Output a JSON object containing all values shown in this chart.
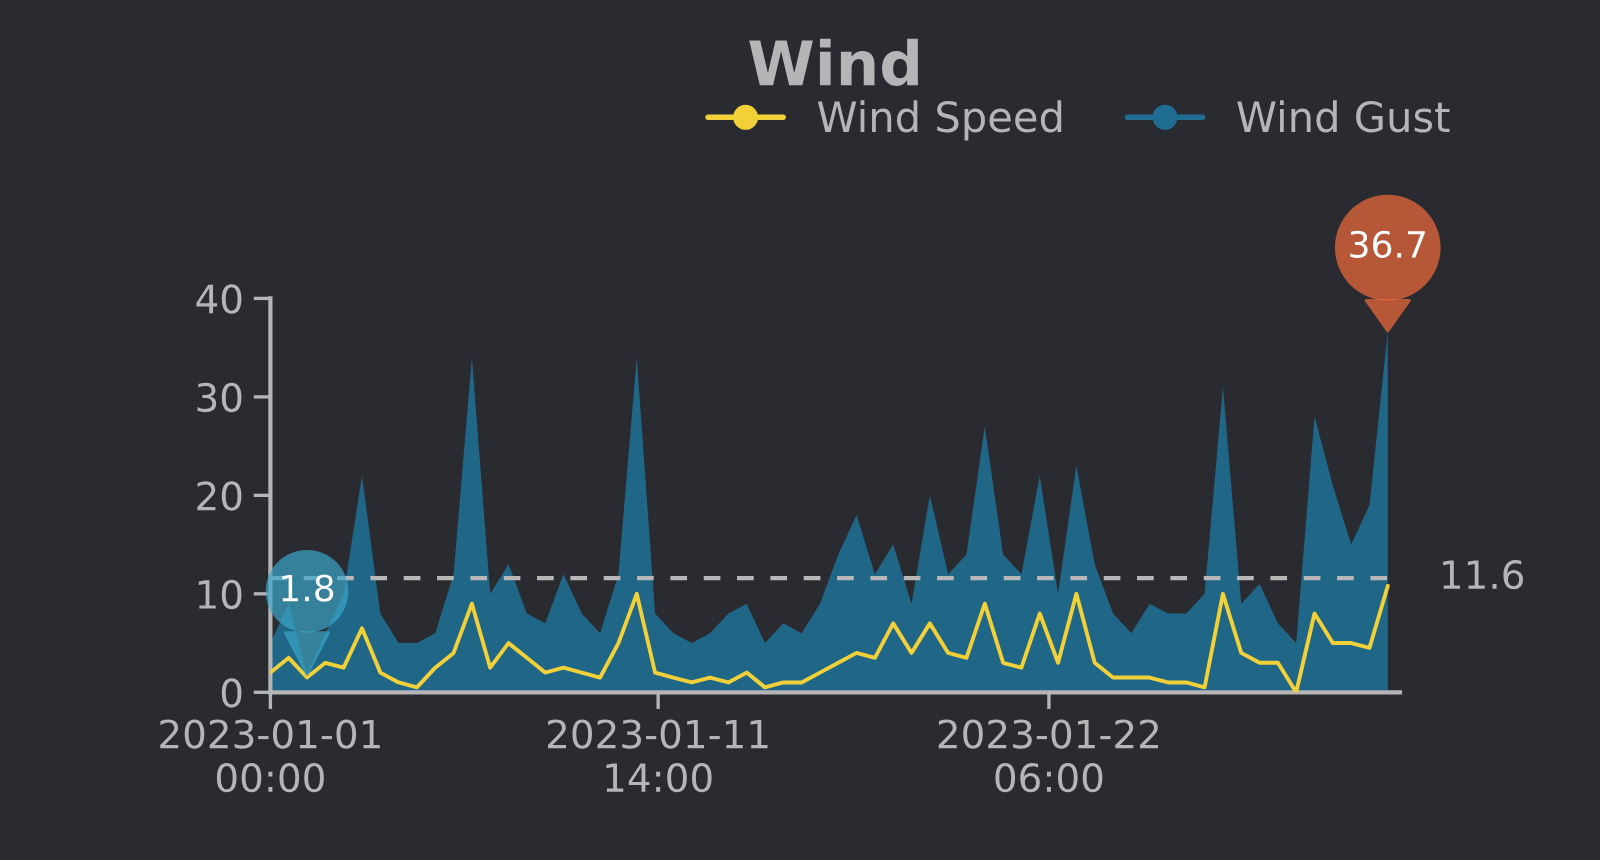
{
  "chart_data": {
    "type": "line",
    "title": "Wind",
    "x": [
      "2023-01-01T00:00",
      "2023-01-01T12:00",
      "2023-01-02T00:00",
      "2023-01-02T12:00",
      "2023-01-03T00:00",
      "2023-01-03T12:00",
      "2023-01-04T00:00",
      "2023-01-04T12:00",
      "2023-01-05T00:00",
      "2023-01-05T12:00",
      "2023-01-06T00:00",
      "2023-01-06T12:00",
      "2023-01-07T00:00",
      "2023-01-07T12:00",
      "2023-01-08T00:00",
      "2023-01-08T12:00",
      "2023-01-09T00:00",
      "2023-01-09T12:00",
      "2023-01-10T00:00",
      "2023-01-10T12:00",
      "2023-01-11T00:00",
      "2023-01-11T12:00",
      "2023-01-12T00:00",
      "2023-01-12T12:00",
      "2023-01-13T00:00",
      "2023-01-13T12:00",
      "2023-01-14T00:00",
      "2023-01-14T12:00",
      "2023-01-15T00:00",
      "2023-01-15T12:00",
      "2023-01-16T00:00",
      "2023-01-16T12:00",
      "2023-01-17T00:00",
      "2023-01-17T12:00",
      "2023-01-18T00:00",
      "2023-01-18T12:00",
      "2023-01-19T00:00",
      "2023-01-19T12:00",
      "2023-01-20T00:00",
      "2023-01-20T12:00",
      "2023-01-21T00:00",
      "2023-01-21T12:00",
      "2023-01-22T00:00",
      "2023-01-22T12:00",
      "2023-01-23T00:00",
      "2023-01-23T12:00",
      "2023-01-24T00:00",
      "2023-01-24T12:00",
      "2023-01-25T00:00",
      "2023-01-25T12:00",
      "2023-01-26T00:00",
      "2023-01-26T12:00",
      "2023-01-27T00:00",
      "2023-01-27T12:00",
      "2023-01-28T00:00",
      "2023-01-28T12:00",
      "2023-01-29T00:00",
      "2023-01-29T12:00",
      "2023-01-30T00:00",
      "2023-01-30T12:00",
      "2023-01-31T00:00",
      "2023-01-31T12:00"
    ],
    "series": [
      {
        "name": "Wind Speed",
        "color": "#f2d138",
        "values": [
          2,
          3.5,
          1.5,
          3,
          2.5,
          6.5,
          2,
          1,
          0.5,
          2.5,
          4,
          9,
          2.5,
          5,
          3.5,
          2,
          2.5,
          2,
          1.5,
          5,
          10,
          2,
          1.5,
          1,
          1.5,
          1,
          2,
          0.5,
          1,
          1,
          2,
          3,
          4,
          3.5,
          7,
          4,
          7,
          4,
          3.5,
          9,
          3,
          2.5,
          8,
          3,
          10,
          3,
          1.5,
          1.5,
          1.5,
          1,
          1,
          0.5,
          10,
          4,
          3,
          3,
          0,
          8,
          5,
          5,
          4.5,
          10.8
        ]
      },
      {
        "name": "Wind Gust",
        "type": "area",
        "color": "#1f6d91",
        "values": [
          5,
          9,
          1.8,
          6,
          10,
          22,
          8,
          5,
          5,
          6,
          12,
          34,
          10,
          13,
          8,
          7,
          12,
          8,
          6,
          12,
          34,
          8,
          6,
          5,
          6,
          8,
          9,
          5,
          7,
          6,
          9,
          14,
          18,
          12,
          15,
          9,
          20,
          12,
          14,
          27,
          14,
          12,
          22,
          10,
          23,
          13,
          8,
          6,
          9,
          8,
          8,
          10,
          31,
          9,
          11,
          7,
          5,
          28,
          21,
          15,
          19,
          36.7
        ]
      }
    ],
    "xlim": [
      "2023-01-01T00:00",
      "2023-01-31T20:00"
    ],
    "xticks": [
      {
        "value": "2023-01-01T00:00",
        "label": "2023-01-01\n00:00"
      },
      {
        "value": "2023-01-11T14:00",
        "label": "2023-01-11\n14:00"
      },
      {
        "value": "2023-01-22T06:00",
        "label": "2023-01-22\n06:00"
      }
    ],
    "ylim": [
      0,
      40
    ],
    "yticks": [
      0,
      10,
      20,
      30,
      40
    ],
    "ref_lines": [
      {
        "axis": "y",
        "value": 11.6,
        "label": "11.6",
        "color": "#b8b8b8",
        "line_style": "dashed"
      }
    ],
    "annotations": [
      {
        "text": "1.8",
        "x": "2023-01-02T00:00",
        "y": 1.8
      },
      {
        "text": "36.7",
        "x": "2023-01-31T12:00",
        "y": 36.7
      }
    ],
    "grid": false,
    "legend": "top right"
  }
}
